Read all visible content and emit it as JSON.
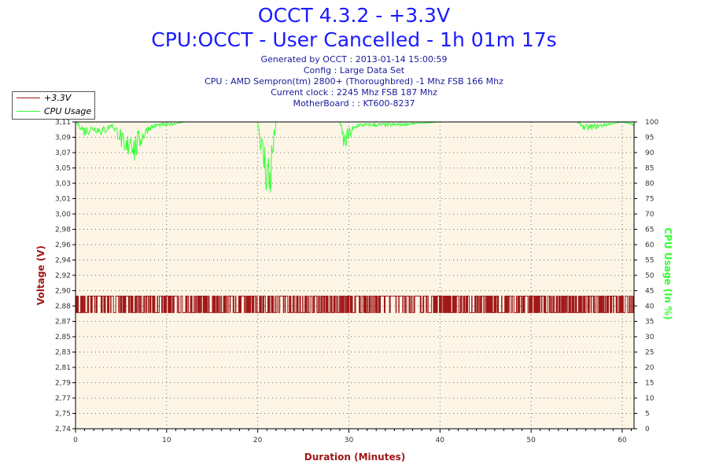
{
  "header": {
    "title": "OCCT 4.3.2 - +3.3V",
    "subtitle": "CPU:OCCT - User Cancelled - 1h 01m 17s",
    "info_lines": [
      "Generated by OCCT : 2013-01-14 15:00:59",
      "Config : Large Data Set",
      "CPU : AMD Sempron(tm) 2800+ (Thoroughbred) -1 Mhz FSB 166 Mhz",
      "Current clock : 2245 Mhz FSB 187 Mhz",
      "MotherBoard : : KT600-8237"
    ]
  },
  "colors": {
    "voltage": "#a01818",
    "cpu": "#33ff33",
    "plot_bg": "#fdf5e6",
    "grid": "#000000"
  },
  "chart_data": {
    "type": "line",
    "xlabel": "Duration (Minutes)",
    "ylabel_left": "Voltage (V)",
    "ylabel_right": "CPU Usage (In %)",
    "xlim": [
      0,
      61.3
    ],
    "ylim_left": [
      2.74,
      3.11
    ],
    "ylim_right": [
      0,
      100
    ],
    "x_ticks": [
      0,
      10,
      20,
      30,
      40,
      50,
      60
    ],
    "y_ticks_left": [
      "2,74",
      "2,75",
      "2,77",
      "2,79",
      "2,81",
      "2,83",
      "2,85",
      "2,87",
      "2,88",
      "2,90",
      "2,92",
      "2,94",
      "2,96",
      "2,98",
      "3,00",
      "3,01",
      "3,03",
      "3,05",
      "3,07",
      "3,09",
      "3,11"
    ],
    "y_ticks_right": [
      0,
      5,
      10,
      15,
      20,
      25,
      30,
      35,
      40,
      45,
      50,
      55,
      60,
      65,
      70,
      75,
      80,
      85,
      90,
      95,
      100
    ],
    "grid": true,
    "legend": "top-left",
    "series": [
      {
        "name": "+3.3V",
        "axis": "left",
        "color": "#a01818",
        "band_low": 2.88,
        "band_high": 2.9,
        "x": [
          0,
          5,
          10,
          15,
          20,
          25,
          30,
          35,
          40,
          45,
          50,
          55,
          60,
          61.3
        ],
        "values": [
          2.89,
          2.895,
          2.89,
          2.89,
          2.89,
          2.89,
          2.89,
          2.895,
          2.89,
          2.89,
          2.89,
          2.89,
          2.89,
          2.89
        ]
      },
      {
        "name": "CPU Usage",
        "axis": "right",
        "color": "#33ff33",
        "x": [
          0,
          1,
          2,
          3,
          4,
          5,
          5.4,
          6,
          6.5,
          7,
          8,
          9,
          10,
          12,
          15,
          20,
          20.5,
          21,
          21.3,
          22,
          25,
          29,
          29.5,
          30,
          31,
          35,
          40,
          45,
          50,
          55,
          56,
          60,
          61.3
        ],
        "values": [
          100,
          97,
          98,
          97,
          99,
          95,
          88,
          95,
          91,
          94,
          98,
          99,
          99,
          100,
          100,
          100,
          90,
          84,
          81,
          100,
          100,
          100,
          93,
          96,
          99,
          99,
          100,
          100,
          100,
          100,
          98,
          100,
          99
        ]
      }
    ]
  }
}
